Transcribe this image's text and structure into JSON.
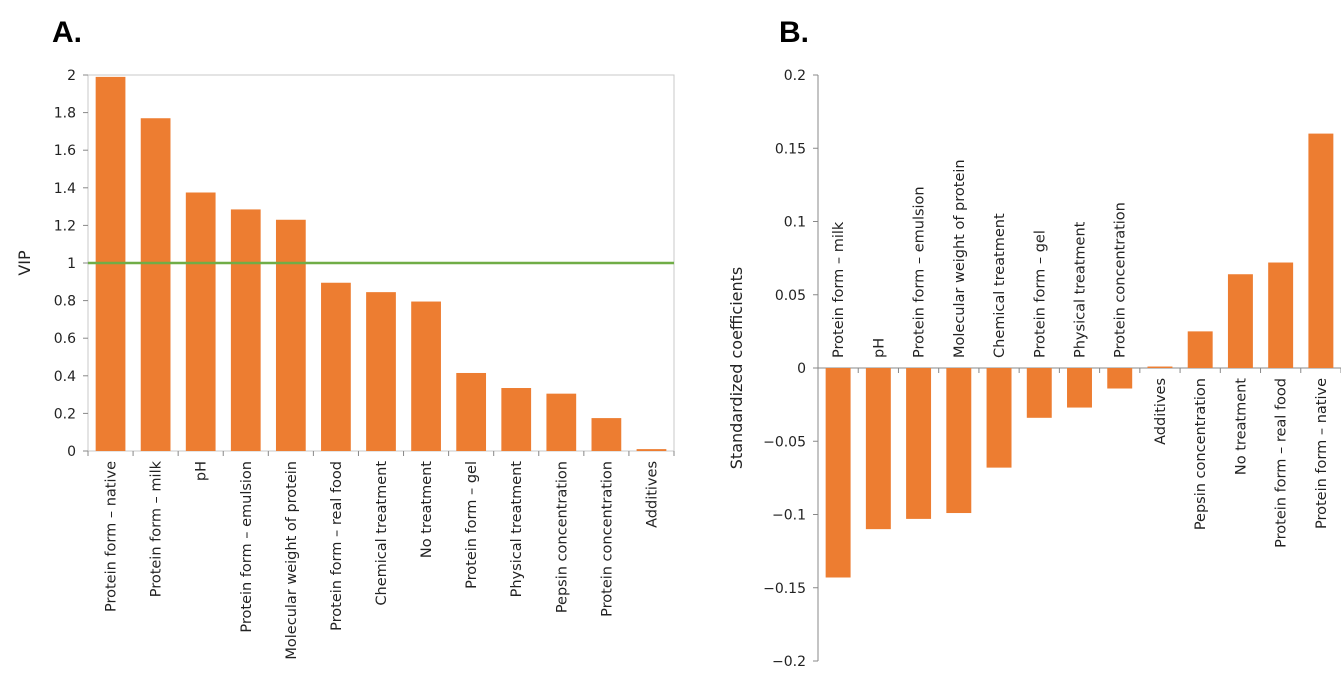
{
  "chart_data": [
    {
      "panel": "A.",
      "type": "bar",
      "ylabel": "VIP",
      "xlabel": "",
      "ylim": [
        0,
        2
      ],
      "yticks": [
        "0",
        "0.2",
        "0.4",
        "0.6",
        "0.8",
        "1",
        "1.2",
        "1.4",
        "1.6",
        "1.8",
        "2"
      ],
      "categories": [
        "Protein form – native",
        "Protein form – milk",
        "pH",
        "Protein form – emulsion",
        "Molecular weight of protein",
        "Protein form – real food",
        "Chemical treatment",
        "No treatment",
        "Protein form – gel",
        "Physical treatment",
        "Pepsin concentration",
        "Protein concentration",
        "Additives"
      ],
      "values": [
        1.99,
        1.77,
        1.375,
        1.285,
        1.23,
        0.895,
        0.845,
        0.795,
        0.415,
        0.335,
        0.305,
        0.175,
        0.01
      ],
      "threshold": 1,
      "bar_color": "#ED7D31",
      "threshold_color": "#70AD47",
      "grid": false
    },
    {
      "panel": "B.",
      "type": "bar",
      "ylabel": "Standardized coefficients",
      "xlabel": "",
      "ylim": [
        -0.2,
        0.2
      ],
      "yticks": [
        "−0.2",
        "−0.15",
        "−0.1",
        "−0.05",
        "0",
        "0.05",
        "0.1",
        "0.15",
        "0.2"
      ],
      "categories": [
        "Protein form – milk",
        "pH",
        "Protein form – emulsion",
        "Molecular weight of protein",
        "Chemical treatment",
        "Protein form – gel",
        "Physical treatment",
        "Protein concentration",
        "Additives",
        "Pepsin concentration",
        "No treatment",
        "Protein form – real food",
        "Protein form – native"
      ],
      "values": [
        -0.143,
        -0.11,
        -0.103,
        -0.099,
        -0.068,
        -0.034,
        -0.027,
        -0.014,
        0.001,
        0.025,
        0.064,
        0.072,
        0.16
      ],
      "bar_color": "#ED7D31",
      "grid": false
    }
  ]
}
